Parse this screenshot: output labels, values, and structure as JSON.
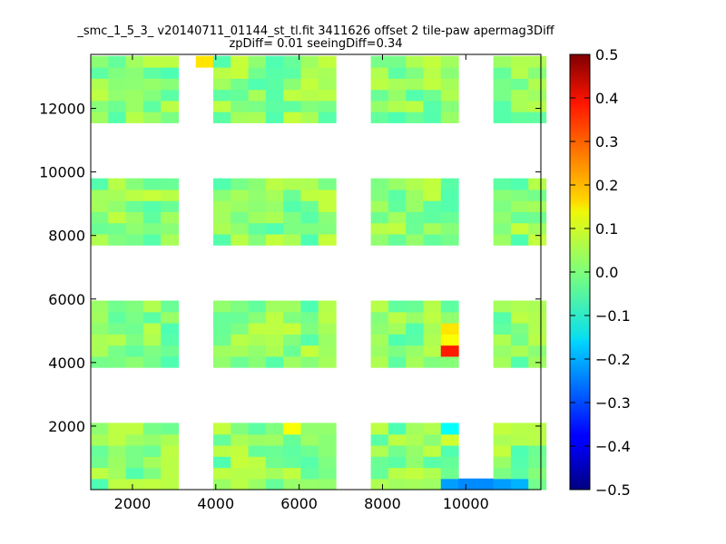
{
  "chart_data": {
    "type": "heatmap",
    "title_line1": "_smc_1_5_3_ v20140711_01144_st_tl.fit 3411626 offset 2 tile-paw apermag3Diff",
    "title_line2": "zpDiff= 0.01 seeingDiff=0.34",
    "xlabel": "",
    "ylabel": "",
    "xlim": [
      1000,
      11800
    ],
    "ylim": [
      0,
      13700
    ],
    "x_ticks": [
      2000,
      4000,
      6000,
      8000,
      10000
    ],
    "y_ticks": [
      2000,
      4000,
      6000,
      8000,
      10000,
      12000
    ],
    "colorbar": {
      "colormap": "jet",
      "range": [
        -0.5,
        0.5
      ],
      "ticks": [
        "0.5",
        "0.4",
        "0.3",
        "0.2",
        "0.1",
        "0.0",
        "−0.1",
        "−0.2",
        "−0.3",
        "−0.4",
        "−0.5"
      ]
    },
    "cell_size": [
      420,
      350
    ],
    "x_bins": [
      1000,
      1420,
      1840,
      2260,
      2680,
      3100,
      3520,
      3940,
      4360,
      4780,
      5200,
      5620,
      6040,
      6460,
      6880,
      7300,
      7720,
      8140,
      8560,
      8980,
      9400,
      9820,
      10240,
      10660,
      11080,
      11500
    ],
    "y_bins": [
      0,
      350,
      700,
      1050,
      1400,
      1750,
      2100,
      2450,
      2800,
      3150,
      3500,
      3850,
      4200,
      4550,
      4900,
      5250,
      5600,
      5950,
      6300,
      6650,
      7000,
      7350,
      7700,
      8050,
      8400,
      8750,
      9100,
      9450,
      9800,
      10150,
      10500,
      10850,
      11200,
      11550,
      11900,
      12250,
      12600,
      12950,
      13300
    ],
    "grid": false,
    "legend": "none",
    "highlight_cells": [
      {
        "x": 9400,
        "y": 4200,
        "value": 0.35
      },
      {
        "x": 9400,
        "y": 4550,
        "value": 0.12
      },
      {
        "x": 9400,
        "y": 4900,
        "value": 0.15
      },
      {
        "x": 9400,
        "y": 0,
        "value": -0.22
      },
      {
        "x": 9820,
        "y": 0,
        "value": -0.24
      },
      {
        "x": 10240,
        "y": 0,
        "value": -0.24
      },
      {
        "x": 10660,
        "y": 0,
        "value": -0.22
      },
      {
        "x": 11080,
        "y": 0,
        "value": -0.2
      },
      {
        "x": 3520,
        "y": 13300,
        "value": 0.15
      },
      {
        "x": 5620,
        "y": 1750,
        "value": 0.12
      },
      {
        "x": 9400,
        "y": 1750,
        "value": -0.12
      },
      {
        "x": 9400,
        "y": 1400,
        "value": 0.08
      }
    ]
  }
}
